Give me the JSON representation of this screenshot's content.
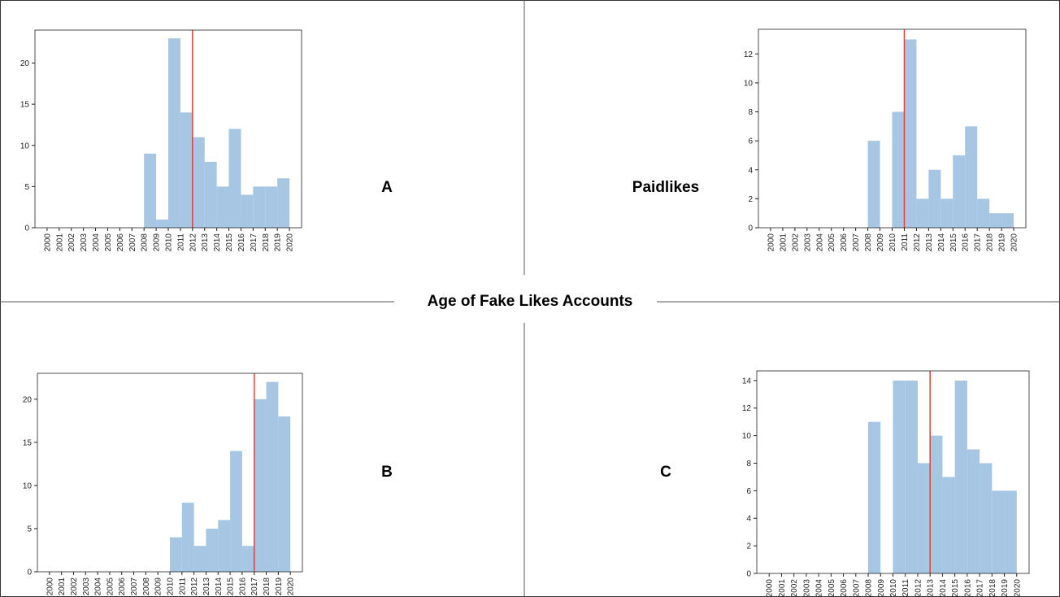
{
  "title": "Age of Fake Likes Accounts",
  "chart_data": [
    {
      "type": "histogram",
      "title": "A",
      "color": "#a6c6e3",
      "vline": 2012,
      "vline_color": "#e0403a",
      "bins": [
        2000,
        2001,
        2002,
        2003,
        2004,
        2005,
        2006,
        2007,
        2008,
        2009,
        2010,
        2011,
        2012,
        2013,
        2014,
        2015,
        2016,
        2017,
        2018,
        2019,
        2020
      ],
      "values": [
        0,
        0,
        0,
        0,
        0,
        0,
        0,
        0,
        9,
        1,
        23,
        14,
        11,
        8,
        5,
        12,
        4,
        5,
        5,
        6
      ],
      "xlim": [
        1999,
        2021
      ],
      "xticks": [
        2000,
        2001,
        2002,
        2003,
        2004,
        2005,
        2006,
        2007,
        2008,
        2009,
        2010,
        2011,
        2012,
        2013,
        2014,
        2015,
        2016,
        2017,
        2018,
        2019,
        2020
      ],
      "ylim": [
        0,
        24
      ],
      "yticks": [
        0,
        5,
        10,
        15,
        20
      ]
    },
    {
      "type": "histogram",
      "title": "Paidlikes",
      "color": "#a6c6e3",
      "vline": 2011,
      "vline_color": "#e0403a",
      "bins": [
        2000,
        2001,
        2002,
        2003,
        2004,
        2005,
        2006,
        2007,
        2008,
        2009,
        2010,
        2011,
        2012,
        2013,
        2014,
        2015,
        2016,
        2017,
        2018,
        2019,
        2020
      ],
      "values": [
        0,
        0,
        0,
        0,
        0,
        0,
        0,
        0,
        6,
        0,
        8,
        13,
        2,
        4,
        2,
        5,
        7,
        2,
        1,
        1
      ],
      "xlim": [
        1999,
        2021
      ],
      "xticks": [
        2000,
        2001,
        2002,
        2003,
        2004,
        2005,
        2006,
        2007,
        2008,
        2009,
        2010,
        2011,
        2012,
        2013,
        2014,
        2015,
        2016,
        2017,
        2018,
        2019,
        2020
      ],
      "ylim": [
        0,
        13.7
      ],
      "yticks": [
        0,
        2,
        4,
        6,
        8,
        10,
        12
      ]
    },
    {
      "type": "histogram",
      "title": "B",
      "color": "#a6c6e3",
      "vline": 2017,
      "vline_color": "#e0403a",
      "bins": [
        2000,
        2001,
        2002,
        2003,
        2004,
        2005,
        2006,
        2007,
        2008,
        2009,
        2010,
        2011,
        2012,
        2013,
        2014,
        2015,
        2016,
        2017,
        2018,
        2019,
        2020
      ],
      "values": [
        0,
        0,
        0,
        0,
        0,
        0,
        0,
        0,
        0,
        0,
        4,
        8,
        3,
        5,
        6,
        14,
        3,
        20,
        22,
        18
      ],
      "xlim": [
        1999,
        2021
      ],
      "xticks": [
        2000,
        2001,
        2002,
        2003,
        2004,
        2005,
        2006,
        2007,
        2008,
        2009,
        2010,
        2011,
        2012,
        2013,
        2014,
        2015,
        2016,
        2017,
        2018,
        2019,
        2020
      ],
      "ylim": [
        0,
        23
      ],
      "yticks": [
        0,
        5,
        10,
        15,
        20
      ]
    },
    {
      "type": "histogram",
      "title": "C",
      "color": "#a6c6e3",
      "vline": 2013,
      "vline_color": "#e0403a",
      "bins": [
        2000,
        2001,
        2002,
        2003,
        2004,
        2005,
        2006,
        2007,
        2008,
        2009,
        2010,
        2011,
        2012,
        2013,
        2014,
        2015,
        2016,
        2017,
        2018,
        2019,
        2020
      ],
      "values": [
        0,
        0,
        0,
        0,
        0,
        0,
        0,
        0,
        11,
        0,
        14,
        14,
        8,
        10,
        7,
        14,
        9,
        8,
        6,
        6
      ],
      "xlim": [
        1999,
        2021
      ],
      "xticks": [
        2000,
        2001,
        2002,
        2003,
        2004,
        2005,
        2006,
        2007,
        2008,
        2009,
        2010,
        2011,
        2012,
        2013,
        2014,
        2015,
        2016,
        2017,
        2018,
        2019,
        2020
      ],
      "ylim": [
        0,
        14.7
      ],
      "yticks": [
        0,
        2,
        4,
        6,
        8,
        10,
        12,
        14
      ]
    }
  ]
}
